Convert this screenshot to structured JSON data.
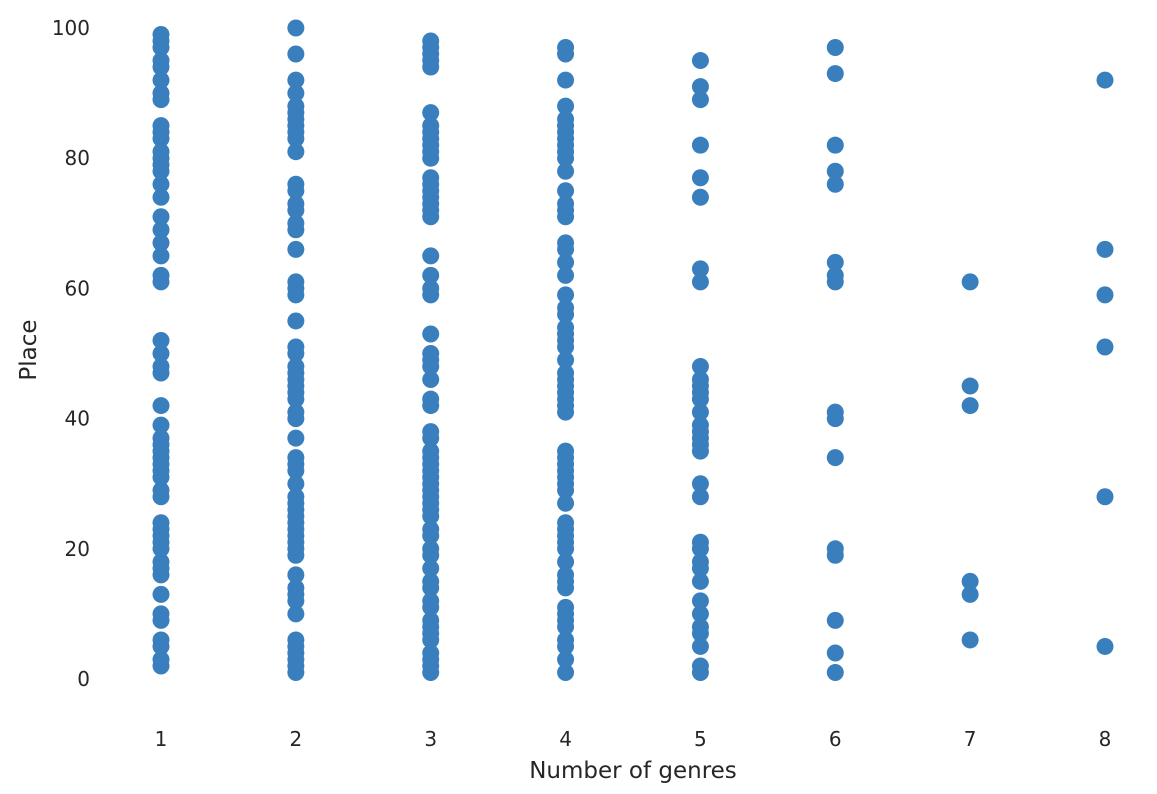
{
  "chart_data": {
    "type": "scatter",
    "title": "",
    "xlabel": "Number of genres",
    "ylabel": "Place",
    "xlim": [
      0.5,
      8.5
    ],
    "ylim": [
      -5,
      101
    ],
    "xticks": [
      1,
      2,
      3,
      4,
      5,
      6,
      7,
      8
    ],
    "yticks": [
      0,
      20,
      40,
      60,
      80,
      100
    ],
    "grid": false,
    "marker_color": "#3a7fbd",
    "points": {
      "1": [
        2,
        3,
        5,
        6,
        9,
        10,
        13,
        16,
        17,
        18,
        20,
        21,
        22,
        23,
        24,
        28,
        29,
        31,
        32,
        33,
        34,
        35,
        36,
        37,
        39,
        42,
        47,
        48,
        50,
        52,
        61,
        62,
        65,
        67,
        69,
        71,
        74,
        76,
        78,
        79,
        80,
        81,
        83,
        84,
        85,
        89,
        90,
        92,
        94,
        95,
        97,
        98,
        99
      ],
      "2": [
        1,
        2,
        3,
        4,
        5,
        6,
        10,
        12,
        13,
        14,
        16,
        19,
        20,
        21,
        22,
        23,
        24,
        25,
        26,
        27,
        28,
        30,
        32,
        33,
        34,
        37,
        40,
        41,
        43,
        44,
        45,
        46,
        47,
        48,
        50,
        51,
        55,
        59,
        60,
        61,
        66,
        69,
        70,
        72,
        73,
        75,
        76,
        81,
        83,
        84,
        85,
        86,
        87,
        88,
        90,
        92,
        96,
        100
      ],
      "3": [
        1,
        2,
        3,
        4,
        6,
        7,
        8,
        9,
        11,
        12,
        14,
        15,
        17,
        19,
        20,
        22,
        23,
        25,
        26,
        27,
        28,
        29,
        30,
        31,
        32,
        33,
        34,
        35,
        37,
        38,
        42,
        43,
        46,
        48,
        49,
        50,
        53,
        59,
        60,
        62,
        65,
        71,
        72,
        73,
        74,
        75,
        76,
        77,
        80,
        81,
        82,
        83,
        84,
        85,
        87,
        94,
        95,
        96,
        97,
        98
      ],
      "4": [
        1,
        3,
        5,
        6,
        8,
        9,
        10,
        11,
        14,
        15,
        16,
        18,
        20,
        21,
        22,
        23,
        24,
        27,
        29,
        30,
        31,
        32,
        33,
        34,
        35,
        41,
        42,
        43,
        44,
        45,
        46,
        47,
        49,
        51,
        52,
        53,
        54,
        56,
        57,
        59,
        62,
        64,
        66,
        67,
        71,
        72,
        73,
        75,
        78,
        80,
        81,
        82,
        83,
        84,
        85,
        86,
        88,
        92,
        96,
        97
      ],
      "5": [
        1,
        2,
        5,
        7,
        8,
        10,
        12,
        15,
        17,
        18,
        20,
        21,
        28,
        30,
        35,
        36,
        37,
        38,
        39,
        41,
        43,
        44,
        45,
        46,
        48,
        61,
        63,
        74,
        77,
        82,
        89,
        91,
        95
      ],
      "6": [
        1,
        4,
        9,
        19,
        20,
        34,
        40,
        41,
        61,
        62,
        64,
        76,
        78,
        82,
        93,
        97
      ],
      "7": [
        6,
        13,
        15,
        42,
        45,
        61
      ],
      "8": [
        5,
        28,
        51,
        59,
        66,
        92
      ]
    }
  }
}
